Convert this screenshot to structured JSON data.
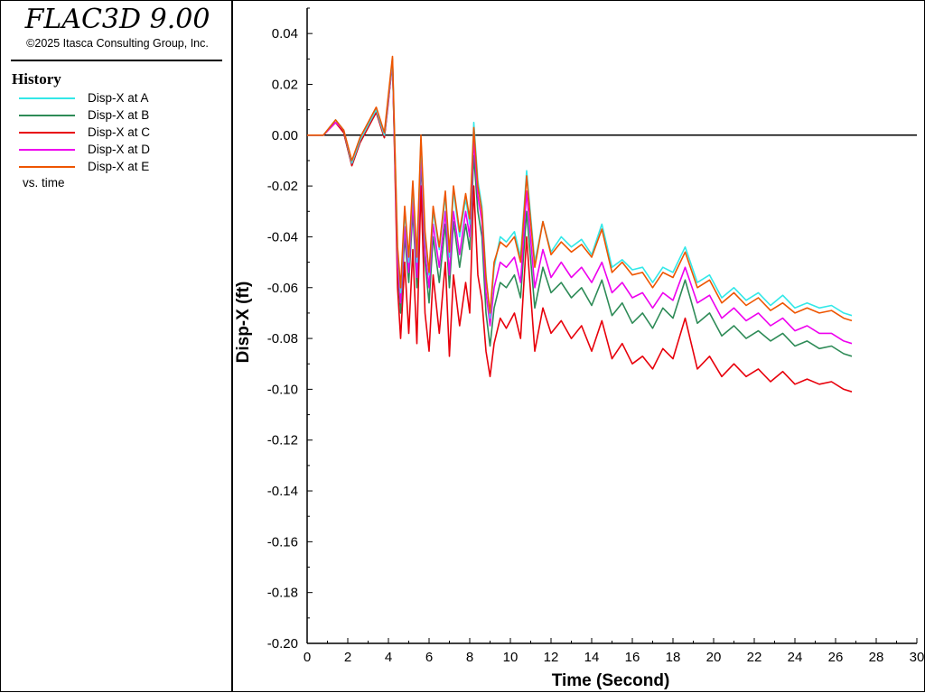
{
  "sidebar": {
    "app_title": "FLAC3D 9.00",
    "copyright": "©2025 Itasca Consulting Group, Inc.",
    "history_heading": "History",
    "vs_label": "vs. time"
  },
  "chart_data": {
    "type": "line",
    "xlabel": "Time (Second)",
    "ylabel": "Disp-X (ft)",
    "xlim": [
      0,
      30
    ],
    "ylim": [
      -0.2,
      0.05
    ],
    "xticks": [
      0,
      2,
      4,
      6,
      8,
      10,
      12,
      14,
      16,
      18,
      20,
      22,
      24,
      26,
      28,
      30
    ],
    "yticks": [
      "0.04",
      "0.02",
      "0.00",
      "-0.02",
      "-0.04",
      "-0.06",
      "-0.08",
      "-0.10",
      "-0.12",
      "-0.14",
      "-0.16",
      "-0.18",
      "-0.20"
    ],
    "zero_line": true,
    "grid": false,
    "legend_position": "left-panel",
    "series": [
      {
        "name": "Disp-X at A",
        "color": "#33e8e8",
        "x": [
          0,
          0.8,
          1.4,
          1.8,
          2.2,
          2.6,
          3.0,
          3.4,
          3.8,
          4.0,
          4.2,
          4.45,
          4.6,
          4.8,
          5.0,
          5.2,
          5.4,
          5.6,
          5.8,
          6.0,
          6.2,
          6.5,
          6.8,
          7.0,
          7.2,
          7.5,
          7.8,
          8.0,
          8.2,
          8.4,
          8.6,
          8.8,
          9.0,
          9.2,
          9.5,
          9.8,
          10.2,
          10.5,
          10.8,
          11.2,
          11.6,
          12.0,
          12.5,
          13.0,
          13.5,
          14.0,
          14.5,
          15.0,
          15.5,
          16.0,
          16.5,
          17.0,
          17.5,
          18.0,
          18.6,
          19.2,
          19.8,
          20.4,
          21.0,
          21.6,
          22.2,
          22.8,
          23.4,
          24.0,
          24.6,
          25.2,
          25.8,
          26.4,
          26.8
        ],
        "y": [
          0,
          0,
          0.006,
          0.002,
          -0.011,
          -0.002,
          0.004,
          0.01,
          0,
          0.015,
          0.03,
          -0.045,
          -0.062,
          -0.03,
          -0.05,
          -0.02,
          -0.05,
          -0.002,
          -0.04,
          -0.055,
          -0.03,
          -0.045,
          -0.024,
          -0.048,
          -0.022,
          -0.04,
          -0.025,
          -0.035,
          0.005,
          -0.018,
          -0.028,
          -0.055,
          -0.072,
          -0.052,
          -0.04,
          -0.042,
          -0.038,
          -0.048,
          -0.014,
          -0.05,
          -0.034,
          -0.046,
          -0.04,
          -0.044,
          -0.041,
          -0.047,
          -0.035,
          -0.052,
          -0.049,
          -0.053,
          -0.052,
          -0.058,
          -0.052,
          -0.054,
          -0.044,
          -0.058,
          -0.055,
          -0.064,
          -0.06,
          -0.065,
          -0.062,
          -0.067,
          -0.063,
          -0.068,
          -0.066,
          -0.068,
          -0.067,
          -0.07,
          -0.071
        ]
      },
      {
        "name": "Disp-X at B",
        "color": "#2e8b57",
        "x": [
          0,
          0.8,
          1.4,
          1.8,
          2.2,
          2.6,
          3.0,
          3.4,
          3.8,
          4.0,
          4.2,
          4.45,
          4.6,
          4.8,
          5.0,
          5.2,
          5.4,
          5.6,
          5.8,
          6.0,
          6.2,
          6.5,
          6.8,
          7.0,
          7.2,
          7.5,
          7.8,
          8.0,
          8.2,
          8.4,
          8.6,
          8.8,
          9.0,
          9.2,
          9.5,
          9.8,
          10.2,
          10.5,
          10.8,
          11.2,
          11.6,
          12.0,
          12.5,
          13.0,
          13.5,
          14.0,
          14.5,
          15.0,
          15.5,
          16.0,
          16.5,
          17.0,
          17.5,
          18.0,
          18.6,
          19.2,
          19.8,
          20.4,
          21.0,
          21.6,
          22.2,
          22.8,
          23.4,
          24.0,
          24.6,
          25.2,
          25.8,
          26.4,
          26.8
        ],
        "y": [
          0,
          0,
          0.005,
          0.001,
          -0.012,
          -0.003,
          0.003,
          0.009,
          -0.001,
          0.014,
          0.028,
          -0.052,
          -0.07,
          -0.04,
          -0.058,
          -0.03,
          -0.06,
          -0.01,
          -0.05,
          -0.066,
          -0.04,
          -0.058,
          -0.035,
          -0.06,
          -0.034,
          -0.052,
          -0.035,
          -0.045,
          -0.008,
          -0.03,
          -0.04,
          -0.07,
          -0.083,
          -0.068,
          -0.058,
          -0.06,
          -0.055,
          -0.064,
          -0.03,
          -0.068,
          -0.052,
          -0.062,
          -0.058,
          -0.064,
          -0.06,
          -0.067,
          -0.057,
          -0.071,
          -0.066,
          -0.074,
          -0.07,
          -0.076,
          -0.068,
          -0.072,
          -0.057,
          -0.074,
          -0.07,
          -0.079,
          -0.075,
          -0.08,
          -0.077,
          -0.081,
          -0.078,
          -0.083,
          -0.081,
          -0.084,
          -0.083,
          -0.086,
          -0.087
        ]
      },
      {
        "name": "Disp-X at C",
        "color": "#e8000b",
        "x": [
          0,
          0.8,
          1.4,
          1.8,
          2.2,
          2.6,
          3.0,
          3.4,
          3.8,
          4.0,
          4.2,
          4.45,
          4.6,
          4.8,
          5.0,
          5.2,
          5.4,
          5.6,
          5.8,
          6.0,
          6.2,
          6.5,
          6.8,
          7.0,
          7.2,
          7.5,
          7.8,
          8.0,
          8.2,
          8.4,
          8.6,
          8.8,
          9.0,
          9.2,
          9.5,
          9.8,
          10.2,
          10.5,
          10.8,
          11.2,
          11.6,
          12.0,
          12.5,
          13.0,
          13.5,
          14.0,
          14.5,
          15.0,
          15.5,
          16.0,
          16.5,
          17.0,
          17.5,
          18.0,
          18.6,
          19.2,
          19.8,
          20.4,
          21.0,
          21.6,
          22.2,
          22.8,
          23.4,
          24.0,
          24.6,
          25.2,
          25.8,
          26.4,
          26.8
        ],
        "y": [
          0,
          0,
          0.005,
          0.001,
          -0.012,
          -0.003,
          0.003,
          0.009,
          -0.001,
          0.013,
          0.03,
          -0.06,
          -0.08,
          -0.05,
          -0.078,
          -0.045,
          -0.082,
          -0.02,
          -0.07,
          -0.085,
          -0.055,
          -0.078,
          -0.05,
          -0.087,
          -0.055,
          -0.075,
          -0.058,
          -0.07,
          -0.02,
          -0.055,
          -0.065,
          -0.085,
          -0.095,
          -0.082,
          -0.072,
          -0.076,
          -0.07,
          -0.08,
          -0.04,
          -0.085,
          -0.068,
          -0.078,
          -0.073,
          -0.08,
          -0.075,
          -0.085,
          -0.073,
          -0.088,
          -0.082,
          -0.09,
          -0.087,
          -0.092,
          -0.084,
          -0.088,
          -0.072,
          -0.092,
          -0.087,
          -0.095,
          -0.09,
          -0.095,
          -0.092,
          -0.097,
          -0.093,
          -0.098,
          -0.096,
          -0.098,
          -0.097,
          -0.1,
          -0.101
        ]
      },
      {
        "name": "Disp-X at D",
        "color": "#ee00ee",
        "x": [
          0,
          0.8,
          1.4,
          1.8,
          2.2,
          2.6,
          3.0,
          3.4,
          3.8,
          4.0,
          4.2,
          4.45,
          4.6,
          4.8,
          5.0,
          5.2,
          5.4,
          5.6,
          5.8,
          6.0,
          6.2,
          6.5,
          6.8,
          7.0,
          7.2,
          7.5,
          7.8,
          8.0,
          8.2,
          8.4,
          8.6,
          8.8,
          9.0,
          9.2,
          9.5,
          9.8,
          10.2,
          10.5,
          10.8,
          11.2,
          11.6,
          12.0,
          12.5,
          13.0,
          13.5,
          14.0,
          14.5,
          15.0,
          15.5,
          16.0,
          16.5,
          17.0,
          17.5,
          18.0,
          18.6,
          19.2,
          19.8,
          20.4,
          21.0,
          21.6,
          22.2,
          22.8,
          23.4,
          24.0,
          24.6,
          25.2,
          25.8,
          26.4,
          26.8
        ],
        "y": [
          0,
          0,
          0.005,
          0.002,
          -0.011,
          -0.002,
          0.004,
          0.01,
          0,
          0.014,
          0.029,
          -0.05,
          -0.066,
          -0.036,
          -0.054,
          -0.026,
          -0.056,
          -0.006,
          -0.046,
          -0.06,
          -0.035,
          -0.052,
          -0.03,
          -0.055,
          -0.03,
          -0.047,
          -0.03,
          -0.04,
          -0.002,
          -0.024,
          -0.034,
          -0.062,
          -0.075,
          -0.06,
          -0.05,
          -0.052,
          -0.048,
          -0.058,
          -0.022,
          -0.06,
          -0.045,
          -0.056,
          -0.05,
          -0.056,
          -0.052,
          -0.058,
          -0.05,
          -0.062,
          -0.058,
          -0.064,
          -0.062,
          -0.068,
          -0.062,
          -0.065,
          -0.052,
          -0.066,
          -0.063,
          -0.072,
          -0.068,
          -0.073,
          -0.07,
          -0.075,
          -0.072,
          -0.077,
          -0.075,
          -0.078,
          -0.078,
          -0.081,
          -0.082
        ]
      },
      {
        "name": "Disp-X at E",
        "color": "#ee5500",
        "x": [
          0,
          0.8,
          1.4,
          1.8,
          2.2,
          2.6,
          3.0,
          3.4,
          3.8,
          4.0,
          4.2,
          4.45,
          4.6,
          4.8,
          5.0,
          5.2,
          5.4,
          5.6,
          5.8,
          6.0,
          6.2,
          6.5,
          6.8,
          7.0,
          7.2,
          7.5,
          7.8,
          8.0,
          8.2,
          8.4,
          8.6,
          8.8,
          9.0,
          9.2,
          9.5,
          9.8,
          10.2,
          10.5,
          10.8,
          11.2,
          11.6,
          12.0,
          12.5,
          13.0,
          13.5,
          14.0,
          14.5,
          15.0,
          15.5,
          16.0,
          16.5,
          17.0,
          17.5,
          18.0,
          18.6,
          19.2,
          19.8,
          20.4,
          21.0,
          21.6,
          22.2,
          22.8,
          23.4,
          24.0,
          24.6,
          25.2,
          25.8,
          26.4,
          26.8
        ],
        "y": [
          0,
          0,
          0.006,
          0.002,
          -0.01,
          -0.001,
          0.005,
          0.011,
          0.001,
          0.016,
          0.031,
          -0.044,
          -0.06,
          -0.028,
          -0.048,
          -0.018,
          -0.048,
          0,
          -0.038,
          -0.054,
          -0.028,
          -0.044,
          -0.022,
          -0.046,
          -0.02,
          -0.038,
          -0.023,
          -0.033,
          0.003,
          -0.02,
          -0.03,
          -0.056,
          -0.07,
          -0.05,
          -0.042,
          -0.044,
          -0.04,
          -0.05,
          -0.016,
          -0.052,
          -0.034,
          -0.047,
          -0.042,
          -0.046,
          -0.043,
          -0.048,
          -0.037,
          -0.054,
          -0.05,
          -0.055,
          -0.054,
          -0.06,
          -0.054,
          -0.056,
          -0.046,
          -0.06,
          -0.057,
          -0.066,
          -0.062,
          -0.067,
          -0.064,
          -0.069,
          -0.066,
          -0.07,
          -0.068,
          -0.07,
          -0.069,
          -0.072,
          -0.073
        ]
      }
    ]
  }
}
